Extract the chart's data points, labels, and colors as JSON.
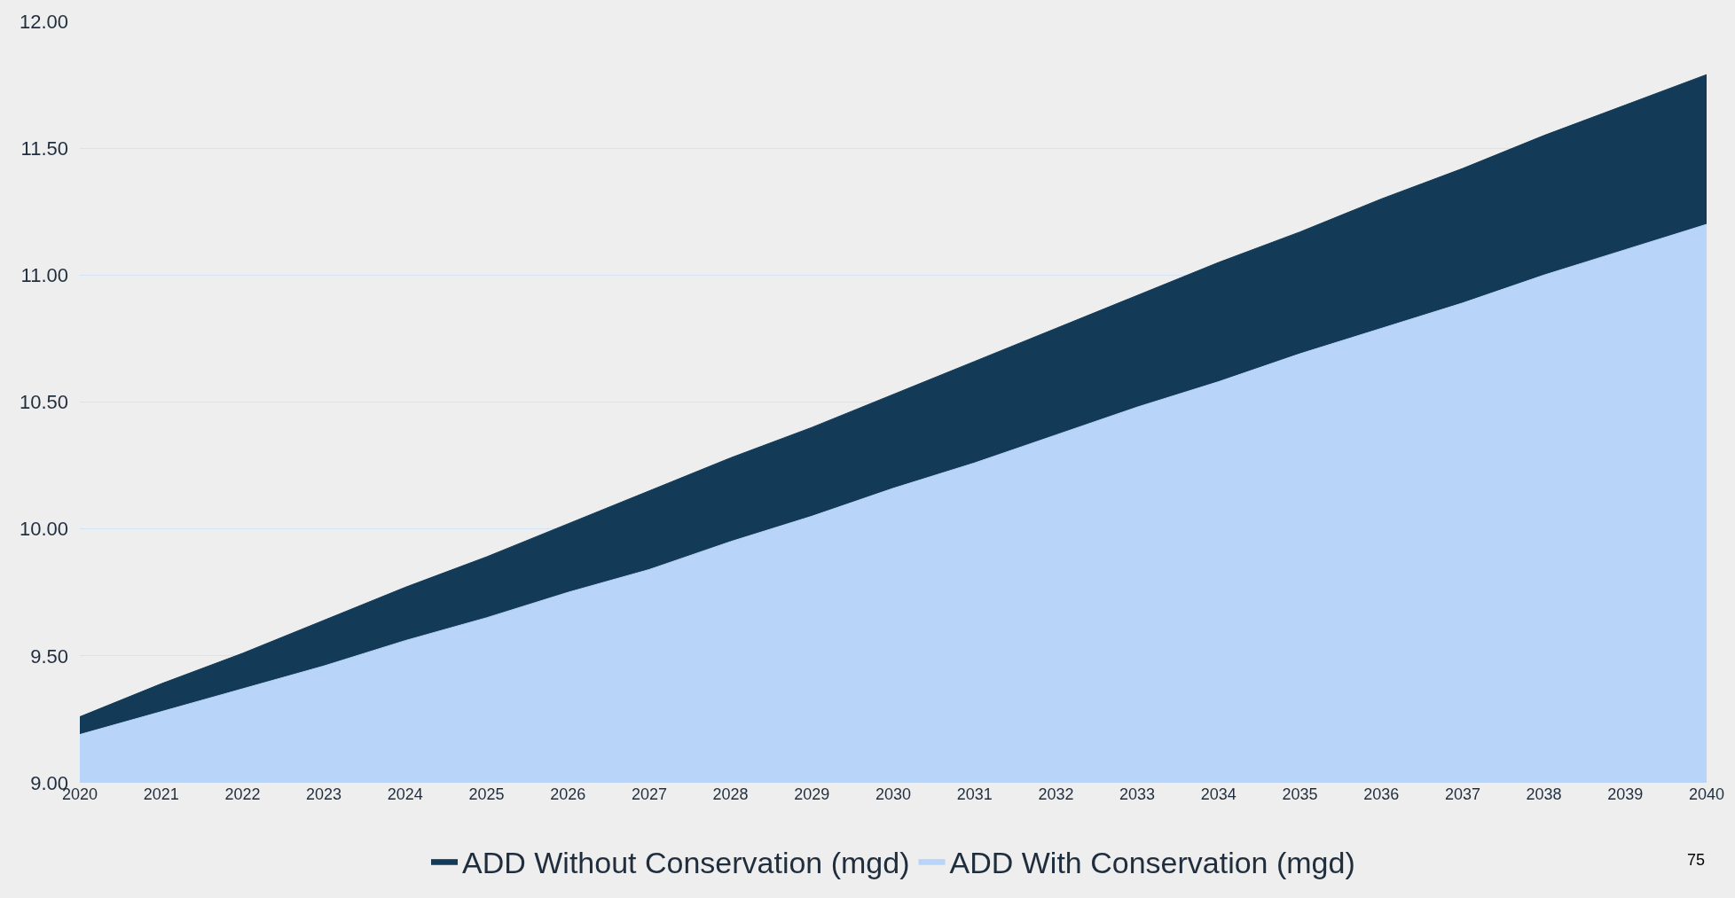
{
  "chart_data": {
    "type": "area",
    "categories": [
      "2020",
      "2021",
      "2022",
      "2023",
      "2024",
      "2025",
      "2026",
      "2027",
      "2028",
      "2029",
      "2030",
      "2031",
      "2032",
      "2033",
      "2034",
      "2035",
      "2036",
      "2037",
      "2038",
      "2039",
      "2040"
    ],
    "series": [
      {
        "name": "ADD Without Conservation (mgd)",
        "color": "#133a56",
        "values": [
          9.26,
          9.39,
          9.51,
          9.64,
          9.77,
          9.89,
          10.02,
          10.15,
          10.28,
          10.4,
          10.53,
          10.66,
          10.79,
          10.92,
          11.05,
          11.17,
          11.3,
          11.42,
          11.55,
          11.67,
          11.79
        ]
      },
      {
        "name": "ADD With Conservation (mgd)",
        "color": "#b8d4f8",
        "values": [
          9.19,
          9.28,
          9.37,
          9.46,
          9.56,
          9.65,
          9.75,
          9.84,
          9.95,
          10.05,
          10.16,
          10.26,
          10.37,
          10.48,
          10.58,
          10.69,
          10.79,
          10.89,
          11.0,
          11.1,
          11.2
        ]
      }
    ],
    "ylim": [
      9,
      12
    ],
    "yticks": [
      {
        "value": 9,
        "label": "9.00"
      },
      {
        "value": 9.5,
        "label": "9.50"
      },
      {
        "value": 10,
        "label": "10.00"
      },
      {
        "value": 10.5,
        "label": "10.50"
      },
      {
        "value": 11,
        "label": "11.00"
      },
      {
        "value": 11.5,
        "label": "11.50"
      },
      {
        "value": 12,
        "label": "12.00"
      }
    ],
    "grid": "y",
    "legend": "bottom",
    "annotations": [
      "75"
    ]
  }
}
